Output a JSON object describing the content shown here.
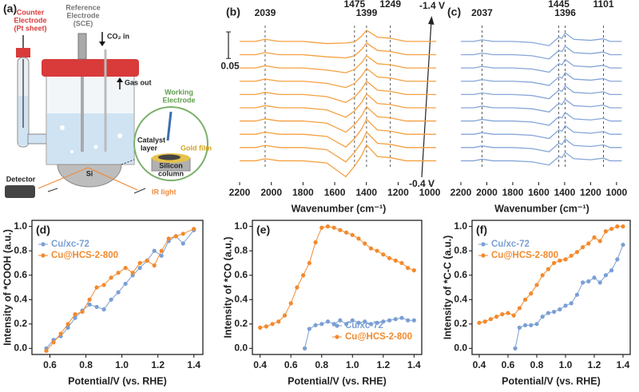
{
  "diagram": {
    "label": "(a)",
    "counter_electrode": [
      "Counter",
      "Electrode",
      "(Pt sheet)"
    ],
    "reference_electrode": [
      "Reference",
      "Electrode",
      "(SCE)"
    ],
    "co2_in": "CO₂ in",
    "gas_out": "Gas out",
    "working_electrode": [
      "Working",
      "Electrode"
    ],
    "catalyst_layer": [
      "Catalyst",
      "layer"
    ],
    "gold_film": "Gold film",
    "silicon_column": [
      "Silicon",
      "column"
    ],
    "si": "Si",
    "detector": "Detector",
    "ir_light": "IR light"
  },
  "chart_data": [
    {
      "type": "line",
      "label": "(b)",
      "x_label": "Wavenumber (cm⁻¹)",
      "xlim": [
        2200,
        950
      ],
      "xticks": [
        2200,
        2000,
        1800,
        1600,
        1400,
        1200,
        1000
      ],
      "ylim": [
        -0.04,
        0.27
      ],
      "scale_bar": 0.05,
      "peak_labels": [
        2039,
        1475,
        1399,
        1249
      ],
      "potential_labels": [
        "-1.4 V",
        "-0.4 V"
      ],
      "color": "#f5a040",
      "x": [
        2200,
        2100,
        2039,
        1950,
        1800,
        1650,
        1530,
        1475,
        1430,
        1399,
        1330,
        1249,
        1150,
        1050,
        960
      ],
      "series": [
        {
          "values": [
            0,
            0,
            0.004,
            0,
            0,
            -0.004,
            -0.03,
            -0.01,
            0.01,
            0.03,
            0.008,
            0.006,
            0,
            0,
            0
          ]
        },
        {
          "values": [
            0.025,
            0.025,
            0.029,
            0.025,
            0.025,
            0.021,
            -0.002,
            0.016,
            0.035,
            0.054,
            0.033,
            0.031,
            0.025,
            0.025,
            0.025
          ]
        },
        {
          "values": [
            0.05,
            0.05,
            0.054,
            0.05,
            0.05,
            0.046,
            0.026,
            0.042,
            0.06,
            0.078,
            0.058,
            0.056,
            0.05,
            0.05,
            0.05
          ]
        },
        {
          "values": [
            0.075,
            0.075,
            0.079,
            0.075,
            0.075,
            0.071,
            0.054,
            0.068,
            0.085,
            0.102,
            0.083,
            0.081,
            0.075,
            0.075,
            0.075
          ]
        },
        {
          "values": [
            0.1,
            0.1,
            0.104,
            0.1,
            0.1,
            0.096,
            0.082,
            0.094,
            0.11,
            0.126,
            0.108,
            0.106,
            0.1,
            0.1,
            0.1
          ]
        },
        {
          "values": [
            0.125,
            0.125,
            0.129,
            0.125,
            0.125,
            0.121,
            0.11,
            0.12,
            0.135,
            0.15,
            0.133,
            0.131,
            0.125,
            0.125,
            0.125
          ]
        },
        {
          "values": [
            0.15,
            0.15,
            0.154,
            0.15,
            0.15,
            0.146,
            0.138,
            0.146,
            0.16,
            0.174,
            0.158,
            0.156,
            0.15,
            0.15,
            0.15
          ]
        },
        {
          "values": [
            0.175,
            0.175,
            0.179,
            0.175,
            0.175,
            0.171,
            0.166,
            0.172,
            0.185,
            0.198,
            0.183,
            0.181,
            0.175,
            0.175,
            0.175
          ]
        },
        {
          "values": [
            0.2,
            0.2,
            0.204,
            0.2,
            0.2,
            0.196,
            0.194,
            0.198,
            0.21,
            0.222,
            0.208,
            0.206,
            0.2,
            0.2,
            0.2
          ]
        },
        {
          "values": [
            0.225,
            0.225,
            0.229,
            0.225,
            0.225,
            0.221,
            0.222,
            0.224,
            0.235,
            0.246,
            0.233,
            0.231,
            0.225,
            0.225,
            0.225
          ]
        }
      ]
    },
    {
      "type": "line",
      "label": "(c)",
      "x_label": "Wavenumber (cm⁻¹)",
      "xlim": [
        2200,
        950
      ],
      "xticks": [
        2200,
        2000,
        1800,
        1600,
        1400,
        1200,
        1000
      ],
      "ylim": [
        -0.04,
        0.27
      ],
      "peak_labels": [
        2037,
        1445,
        1396,
        1101
      ],
      "color": "#86a6d8",
      "x": [
        2200,
        2100,
        2037,
        1950,
        1800,
        1650,
        1520,
        1445,
        1420,
        1396,
        1330,
        1200,
        1101,
        1050,
        960
      ],
      "series": [
        {
          "values": [
            0,
            0,
            0.003,
            0,
            0,
            -0.002,
            -0.008,
            0.008,
            0.006,
            0.016,
            0.004,
            0.002,
            0.005,
            0,
            0
          ]
        },
        {
          "values": [
            0.025,
            0.025,
            0.028,
            0.025,
            0.025,
            0.023,
            0.017,
            0.033,
            0.031,
            0.041,
            0.029,
            0.027,
            0.03,
            0.025,
            0.025
          ]
        },
        {
          "values": [
            0.05,
            0.05,
            0.053,
            0.05,
            0.05,
            0.048,
            0.042,
            0.058,
            0.056,
            0.066,
            0.054,
            0.052,
            0.055,
            0.05,
            0.05
          ]
        },
        {
          "values": [
            0.075,
            0.075,
            0.078,
            0.075,
            0.075,
            0.073,
            0.067,
            0.083,
            0.081,
            0.091,
            0.079,
            0.077,
            0.08,
            0.075,
            0.075
          ]
        },
        {
          "values": [
            0.1,
            0.1,
            0.103,
            0.1,
            0.1,
            0.098,
            0.092,
            0.108,
            0.106,
            0.116,
            0.104,
            0.102,
            0.105,
            0.1,
            0.1
          ]
        },
        {
          "values": [
            0.125,
            0.125,
            0.128,
            0.125,
            0.125,
            0.123,
            0.117,
            0.133,
            0.131,
            0.141,
            0.129,
            0.127,
            0.13,
            0.125,
            0.125
          ]
        },
        {
          "values": [
            0.15,
            0.15,
            0.153,
            0.15,
            0.15,
            0.148,
            0.142,
            0.158,
            0.156,
            0.166,
            0.154,
            0.152,
            0.155,
            0.15,
            0.15
          ]
        },
        {
          "values": [
            0.175,
            0.175,
            0.178,
            0.175,
            0.175,
            0.173,
            0.167,
            0.183,
            0.181,
            0.191,
            0.179,
            0.177,
            0.18,
            0.175,
            0.175
          ]
        },
        {
          "values": [
            0.2,
            0.2,
            0.203,
            0.2,
            0.2,
            0.198,
            0.192,
            0.208,
            0.206,
            0.216,
            0.204,
            0.202,
            0.205,
            0.2,
            0.2
          ]
        },
        {
          "values": [
            0.225,
            0.225,
            0.228,
            0.225,
            0.225,
            0.223,
            0.217,
            0.233,
            0.231,
            0.241,
            0.229,
            0.227,
            0.23,
            0.225,
            0.225
          ]
        }
      ]
    },
    {
      "type": "line",
      "label": "(d)",
      "x_label": "Potential/V (vs. RHE)",
      "y_label": "Intensity of *COOH (a.u.)",
      "markers": true,
      "legend": "upper left",
      "xlim": [
        0.5,
        1.45
      ],
      "xticks": [
        0.6,
        0.8,
        {
          "value": 1,
          "label": "1.0"
        },
        1.2,
        1.4
      ],
      "ylim": [
        -0.05,
        1.05
      ],
      "yticks": [
        {
          "value": 0,
          "label": "0.0"
        },
        0.2,
        0.4,
        0.6,
        0.8,
        {
          "value": 1,
          "label": "1.0"
        }
      ],
      "series": [
        {
          "name": "Cu/xc-72",
          "color": "#7a9fd4",
          "x": [
            0.58,
            0.62,
            0.66,
            0.7,
            0.74,
            0.78,
            0.82,
            0.86,
            0.9,
            0.94,
            0.98,
            1.02,
            1.06,
            1.1,
            1.14,
            1.18,
            1.22,
            1.26,
            1.3,
            1.34,
            1.4
          ],
          "values": [
            0,
            0.07,
            0.1,
            0.17,
            0.25,
            0.31,
            0.36,
            0.34,
            0.32,
            0.4,
            0.46,
            0.53,
            0.6,
            0.66,
            0.72,
            0.8,
            0.76,
            0.88,
            0.92,
            0.86,
            0.97
          ]
        },
        {
          "name": "Cu@HCS-2-800",
          "color": "#f28a2e",
          "x": [
            0.58,
            0.62,
            0.66,
            0.7,
            0.74,
            0.78,
            0.82,
            0.86,
            0.9,
            0.94,
            0.98,
            1.02,
            1.06,
            1.1,
            1.14,
            1.18,
            1.22,
            1.26,
            1.3,
            1.34,
            1.4
          ],
          "values": [
            -0.02,
            0.05,
            0.12,
            0.2,
            0.28,
            0.3,
            0.4,
            0.5,
            0.52,
            0.58,
            0.62,
            0.66,
            0.62,
            0.7,
            0.72,
            0.68,
            0.8,
            0.9,
            0.92,
            0.94,
            0.98
          ]
        }
      ]
    },
    {
      "type": "line",
      "label": "(e)",
      "x_label": "Potential/V (vs. RHE)",
      "y_label": "Intensity of *CO (a.u.)",
      "markers": true,
      "legend": "lower right",
      "xlim": [
        0.35,
        1.45
      ],
      "xticks": [
        0.4,
        0.6,
        0.8,
        {
          "value": 1,
          "label": "1.0"
        },
        1.2,
        1.4
      ],
      "ylim": [
        -0.05,
        1.05
      ],
      "yticks": [
        {
          "value": 0,
          "label": "0.0"
        },
        0.2,
        0.4,
        0.6,
        0.8,
        {
          "value": 1,
          "label": "1.0"
        }
      ],
      "series": [
        {
          "name": "Cu/xc-72",
          "color": "#7a9fd4",
          "x": [
            0.69,
            0.72,
            0.76,
            0.8,
            0.84,
            0.88,
            0.92,
            0.96,
            1.0,
            1.04,
            1.08,
            1.12,
            1.16,
            1.2,
            1.24,
            1.28,
            1.32,
            1.36,
            1.4
          ],
          "values": [
            0,
            0.16,
            0.19,
            0.2,
            0.22,
            0.2,
            0.23,
            0.2,
            0.23,
            0.21,
            0.22,
            0.2,
            0.21,
            0.22,
            0.23,
            0.24,
            0.25,
            0.23,
            0.23
          ]
        },
        {
          "name": "Cu@HCS-2-800",
          "color": "#f28a2e",
          "x": [
            0.4,
            0.44,
            0.48,
            0.52,
            0.56,
            0.6,
            0.64,
            0.68,
            0.72,
            0.76,
            0.8,
            0.84,
            0.88,
            0.92,
            0.96,
            1.0,
            1.04,
            1.08,
            1.12,
            1.16,
            1.2,
            1.24,
            1.28,
            1.32,
            1.36,
            1.4
          ],
          "values": [
            0.17,
            0.18,
            0.2,
            0.22,
            0.27,
            0.37,
            0.5,
            0.6,
            0.7,
            0.87,
            0.99,
            1.0,
            0.99,
            0.97,
            0.95,
            0.93,
            0.9,
            0.86,
            0.82,
            0.8,
            0.77,
            0.74,
            0.72,
            0.7,
            0.66,
            0.64
          ]
        }
      ]
    },
    {
      "type": "line",
      "label": "(f)",
      "x_label": "Potential/V (vs. RHE)",
      "y_label": "Intensity of *C-C (a.u.)",
      "markers": true,
      "legend": "upper left",
      "xlim": [
        0.35,
        1.45
      ],
      "xticks": [
        0.4,
        0.6,
        0.8,
        {
          "value": 1,
          "label": "1.0"
        },
        1.2,
        1.4
      ],
      "ylim": [
        -0.05,
        1.05
      ],
      "yticks": [
        {
          "value": 0,
          "label": "0.0"
        },
        0.2,
        0.4,
        0.6,
        0.8,
        {
          "value": 1,
          "label": "1.0"
        }
      ],
      "series": [
        {
          "name": "Cu/xc-72",
          "color": "#7a9fd4",
          "x": [
            0.65,
            0.68,
            0.72,
            0.76,
            0.8,
            0.84,
            0.88,
            0.92,
            0.96,
            1.0,
            1.04,
            1.08,
            1.12,
            1.16,
            1.2,
            1.24,
            1.28,
            1.32,
            1.36,
            1.4
          ],
          "values": [
            0,
            0.17,
            0.19,
            0.19,
            0.2,
            0.26,
            0.29,
            0.3,
            0.32,
            0.35,
            0.37,
            0.44,
            0.54,
            0.55,
            0.58,
            0.54,
            0.6,
            0.64,
            0.73,
            0.85
          ]
        },
        {
          "name": "Cu@HCS-2-800",
          "color": "#f28a2e",
          "x": [
            0.4,
            0.44,
            0.48,
            0.52,
            0.56,
            0.6,
            0.64,
            0.68,
            0.72,
            0.76,
            0.8,
            0.84,
            0.88,
            0.92,
            0.96,
            1.0,
            1.04,
            1.08,
            1.12,
            1.16,
            1.2,
            1.24,
            1.28,
            1.32,
            1.36,
            1.4
          ],
          "values": [
            0.21,
            0.22,
            0.24,
            0.26,
            0.28,
            0.29,
            0.27,
            0.33,
            0.4,
            0.45,
            0.52,
            0.6,
            0.65,
            0.7,
            0.72,
            0.73,
            0.76,
            0.79,
            0.83,
            0.86,
            0.91,
            0.88,
            0.96,
            0.98,
            1.0,
            1.0
          ]
        }
      ]
    }
  ]
}
